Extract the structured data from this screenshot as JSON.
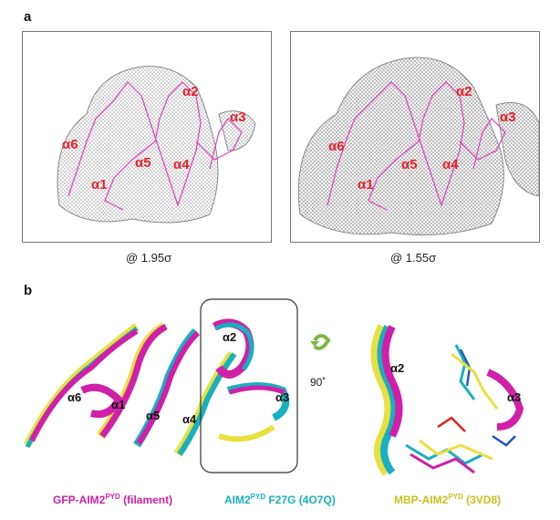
{
  "panel_a": {
    "letter": "a",
    "left_map": {
      "sigma_label": "@ 1.95σ",
      "helices": [
        "α2",
        "α3",
        "α6",
        "α5",
        "α4",
        "α1"
      ]
    },
    "right_map": {
      "sigma_label": "@ 1.55σ",
      "helices": [
        "α2",
        "α3",
        "α6",
        "α5",
        "α4",
        "α1"
      ]
    }
  },
  "panel_b": {
    "letter": "b",
    "left_structure_helices": [
      "α2",
      "α3",
      "α6",
      "α1",
      "α5",
      "α4"
    ],
    "rotation_label": "90˚",
    "right_structure_helices": [
      "α2",
      "α3"
    ],
    "legend": [
      {
        "name_main": "GFP-AIM2",
        "name_sup": "PYD",
        "name_rest": " (filament)",
        "color": "#d020a8"
      },
      {
        "name_main": "AIM2",
        "name_sup": "PYD",
        "name_rest": " F27G (4O7Q)",
        "color": "#18b0c0"
      },
      {
        "name_main": "MBP-AIM2",
        "name_sup": "PYD",
        "name_rest": " (3VD8)",
        "color": "#c8c020"
      }
    ]
  },
  "colors": {
    "helix_label": "#e8202a",
    "trace": "#e040c0",
    "mesh": "#9a9a9a",
    "magenta": "#d020a8",
    "cyan": "#18b0c0",
    "yellow": "#e8e040"
  }
}
